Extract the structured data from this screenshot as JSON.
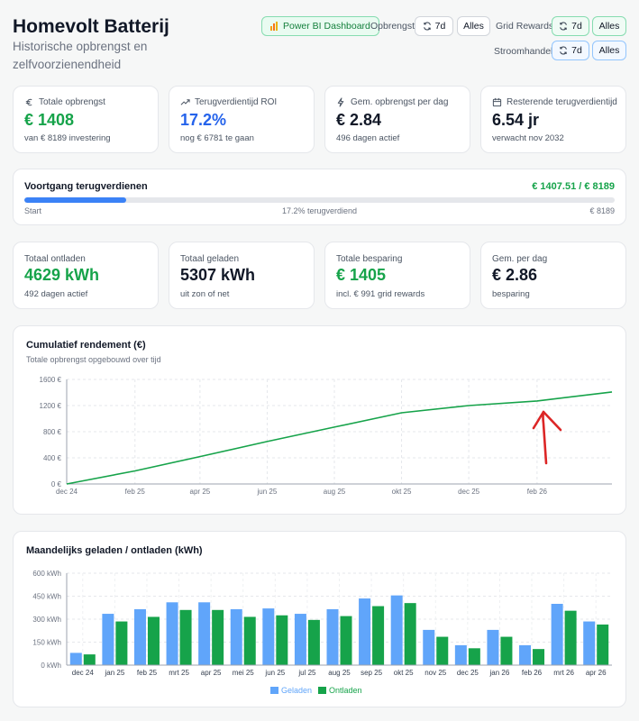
{
  "header": {
    "title": "Homevolt Batterij",
    "subtitle": "Historische opbrengst en zelfvoorzienendheid"
  },
  "controls": {
    "powerbi_label": "Power BI Dashboard",
    "opbrengst_label": "Opbrengst:",
    "grid_rewards_label": "Grid Rewards:",
    "stroomhandel_label": "Stroomhandel:",
    "btn_7d": "7d",
    "btn_alles": "Alles"
  },
  "stats": [
    {
      "label": "Totale opbrengst",
      "value": "€ 1408",
      "sub": "van € 8189 investering",
      "icon": "euro-icon",
      "color": "#16a34a"
    },
    {
      "label": "Terugverdientijd ROI",
      "value": "17.2%",
      "sub": "nog € 6781 te gaan",
      "icon": "trend-up-icon",
      "color": "#2563eb"
    },
    {
      "label": "Gem. opbrengst per dag",
      "value": "€ 2.84",
      "sub": "496 dagen actief",
      "icon": "bolt-icon",
      "color": "#111827"
    },
    {
      "label": "Resterende terugverdientijd",
      "value": "6.54 jr",
      "sub": "verwacht nov 2032",
      "icon": "calendar-icon",
      "color": "#111827"
    }
  ],
  "progress": {
    "title": "Voortgang terugverdienen",
    "amount": "€ 1407.51 / € 8189",
    "fraction": 0.172,
    "start": "Start",
    "middle": "17.2% terugverdiend",
    "end": "€ 8189"
  },
  "stats2": [
    {
      "label": "Totaal ontladen",
      "value": "4629 kWh",
      "sub": "492 dagen actief",
      "color": "#16a34a"
    },
    {
      "label": "Totaal geladen",
      "value": "5307 kWh",
      "sub": "uit zon of net",
      "color": "#111827"
    },
    {
      "label": "Totale besparing",
      "value": "€ 1405",
      "sub": "incl. € 991 grid rewards",
      "color": "#16a34a"
    },
    {
      "label": "Gem. per dag",
      "value": "€ 2.86",
      "sub": "besparing",
      "color": "#111827"
    }
  ],
  "chart_data": [
    {
      "type": "line",
      "title": "Cumulatief rendement (€)",
      "subtitle": "Totale opbrengst opgebouwd over tijd",
      "x_ticks": [
        "dec 24",
        "feb 25",
        "apr 25",
        "jun 25",
        "aug 25",
        "okt 25",
        "dec 25",
        "feb 26"
      ],
      "y_ticks": [
        "0 €",
        "400 €",
        "800 €",
        "1200 €",
        "1600 €"
      ],
      "ylim": [
        0,
        1600
      ],
      "color": "#16a34a",
      "series": [
        {
          "values": [
            {
              "x": "2024-12-01",
              "y": 0
            },
            {
              "x": "2025-02-01",
              "y": 200
            },
            {
              "x": "2025-04-01",
              "y": 420
            },
            {
              "x": "2025-06-01",
              "y": 650
            },
            {
              "x": "2025-08-01",
              "y": 870
            },
            {
              "x": "2025-10-01",
              "y": 1090
            },
            {
              "x": "2025-12-01",
              "y": 1200
            },
            {
              "x": "2026-02-01",
              "y": 1270
            },
            {
              "x": "2026-04-10",
              "y": 1408
            }
          ]
        }
      ],
      "grid": true
    },
    {
      "type": "bar",
      "title": "Maandelijks geladen / ontladen (kWh)",
      "categories": [
        "dec 24",
        "jan 25",
        "feb 25",
        "mrt 25",
        "apr 25",
        "mei 25",
        "jun 25",
        "jul 25",
        "aug 25",
        "sep 25",
        "okt 25",
        "nov 25",
        "dec 25",
        "jan 26",
        "feb 26",
        "mrt 26",
        "apr 26"
      ],
      "y_ticks": [
        "0 kWh",
        "150 kWh",
        "300 kWh",
        "450 kWh",
        "600 kWh"
      ],
      "ylim": [
        0,
        600
      ],
      "series": [
        {
          "name": "Geladen",
          "color": "#60a5fa",
          "values": [
            80,
            335,
            365,
            410,
            410,
            365,
            370,
            335,
            365,
            435,
            455,
            230,
            130,
            230,
            130,
            400,
            285
          ]
        },
        {
          "name": "Ontladen",
          "color": "#16a34a",
          "values": [
            70,
            285,
            315,
            360,
            360,
            315,
            325,
            295,
            320,
            385,
            405,
            185,
            110,
            185,
            105,
            355,
            265
          ]
        }
      ],
      "grid": true,
      "legend": "bottom"
    }
  ]
}
